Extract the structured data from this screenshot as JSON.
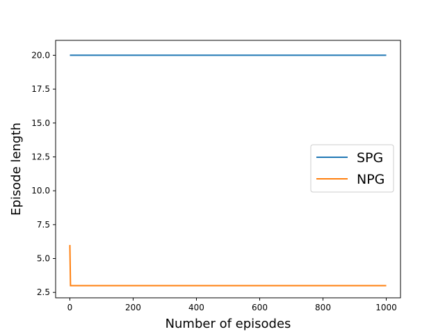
{
  "chart_data": {
    "type": "line",
    "title": "",
    "xlabel": "Number of episodes",
    "ylabel": "Episode length",
    "xlim": [
      -45,
      1045
    ],
    "ylim": [
      2.1,
      21.1
    ],
    "xticks": [
      0,
      200,
      400,
      600,
      800,
      1000
    ],
    "yticks": [
      2.5,
      5.0,
      7.5,
      10.0,
      12.5,
      15.0,
      17.5,
      20.0
    ],
    "xtick_labels": [
      "0",
      "200",
      "400",
      "600",
      "800",
      "1000"
    ],
    "ytick_labels": [
      "2.5",
      "5.0",
      "7.5",
      "10.0",
      "12.5",
      "15.0",
      "17.5",
      "20.0"
    ],
    "grid": false,
    "legend_position": "center-right",
    "series": [
      {
        "name": "SPG",
        "color": "#1f77b4",
        "x": [
          0,
          1000
        ],
        "y": [
          20,
          20
        ]
      },
      {
        "name": "NPG",
        "color": "#ff7f0e",
        "x": [
          0,
          2,
          1000
        ],
        "y": [
          6,
          3,
          3
        ]
      }
    ]
  }
}
